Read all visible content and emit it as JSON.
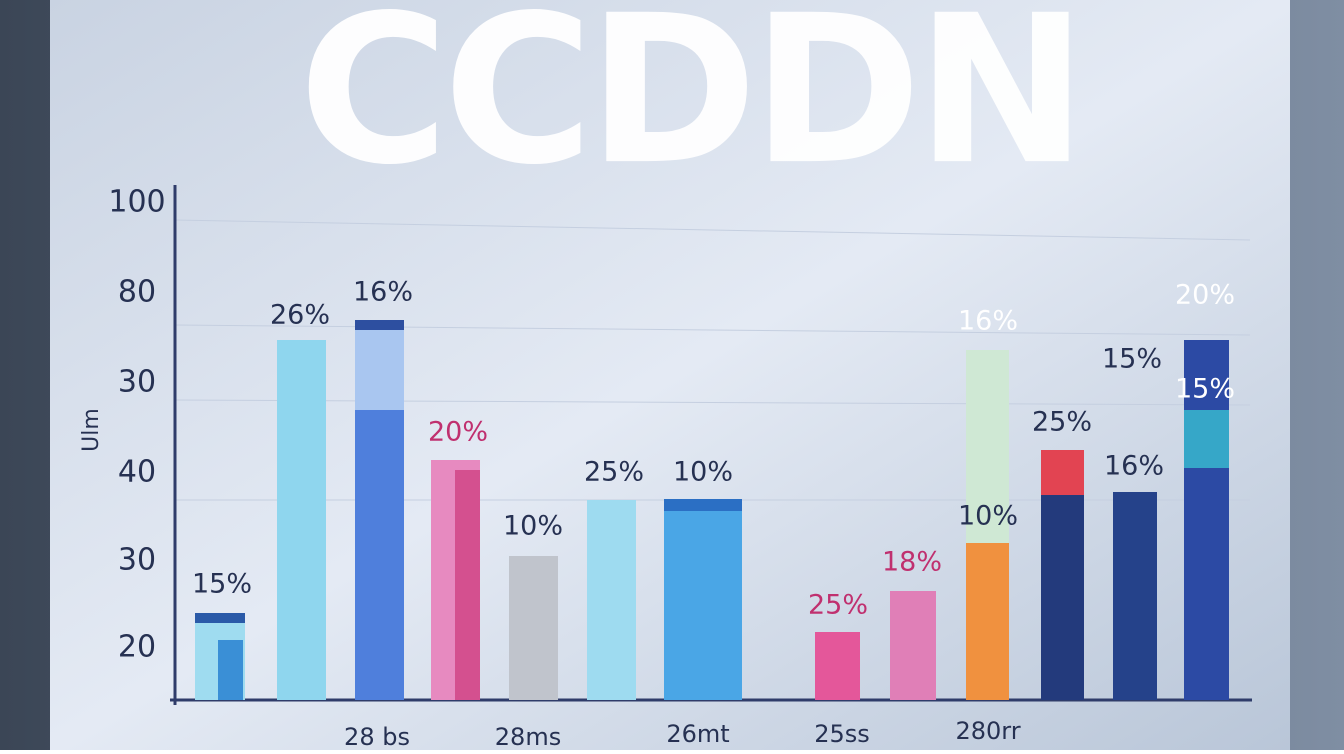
{
  "header": {
    "title": "CCDDN"
  },
  "axis": {
    "label": "Ulm",
    "ticks": [
      "100",
      "80",
      "30",
      "40",
      "30",
      "20"
    ]
  },
  "bar_labels": [
    "15%",
    "26%",
    "16%",
    "20%",
    "10%",
    "25%",
    "10%",
    "25%",
    "18%",
    "16%",
    "10%",
    "25%",
    "16%",
    "15%",
    "20%",
    "15%"
  ],
  "x_labels": [
    "28 bs",
    "28ms",
    "26mt",
    "25ss",
    "280rr"
  ]
}
